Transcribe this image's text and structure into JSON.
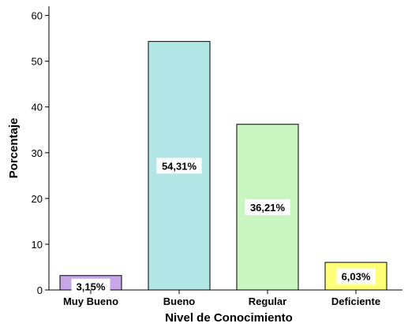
{
  "chart_data": {
    "type": "bar",
    "xlabel": "Nivel de Conocimiento",
    "ylabel": "Porcentaje",
    "categories": [
      "Muy Bueno",
      "Bueno",
      "Regular",
      "Deficiente"
    ],
    "values": [
      3.15,
      54.31,
      36.21,
      6.03
    ],
    "data_labels": [
      "3,15%",
      "54,31%",
      "36,21%",
      "6,03%"
    ],
    "colors": [
      "#c7a7e8",
      "#b3e6e6",
      "#c8f5c0",
      "#ffff7a"
    ],
    "yticks": [
      "0",
      "10",
      "20",
      "30",
      "40",
      "50",
      "60"
    ],
    "ylim": [
      0,
      62
    ],
    "grid": false
  }
}
